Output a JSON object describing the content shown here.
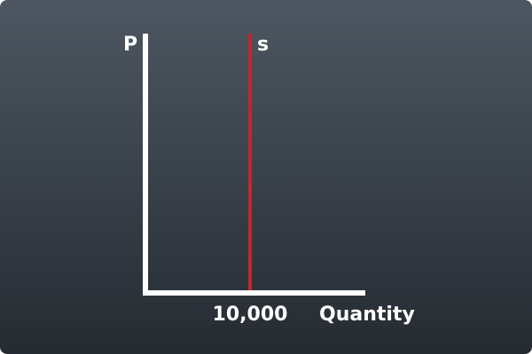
{
  "chart_data": {
    "type": "line",
    "title": "",
    "ylabel": "P",
    "xlabel": "Quantity",
    "xlim": [
      0,
      20000
    ],
    "x_ticks": [
      10000
    ],
    "x_tick_labels": [
      "10,000"
    ],
    "series": [
      {
        "name": "s",
        "x": [
          10000,
          10000
        ],
        "y": [
          0,
          1
        ],
        "color": "#c1272d"
      }
    ],
    "grid": false
  },
  "colors": {
    "background_top": "#4e5761",
    "background_bottom": "#262b31",
    "axis": "#ffffff",
    "supply_line": "#c1272d"
  }
}
